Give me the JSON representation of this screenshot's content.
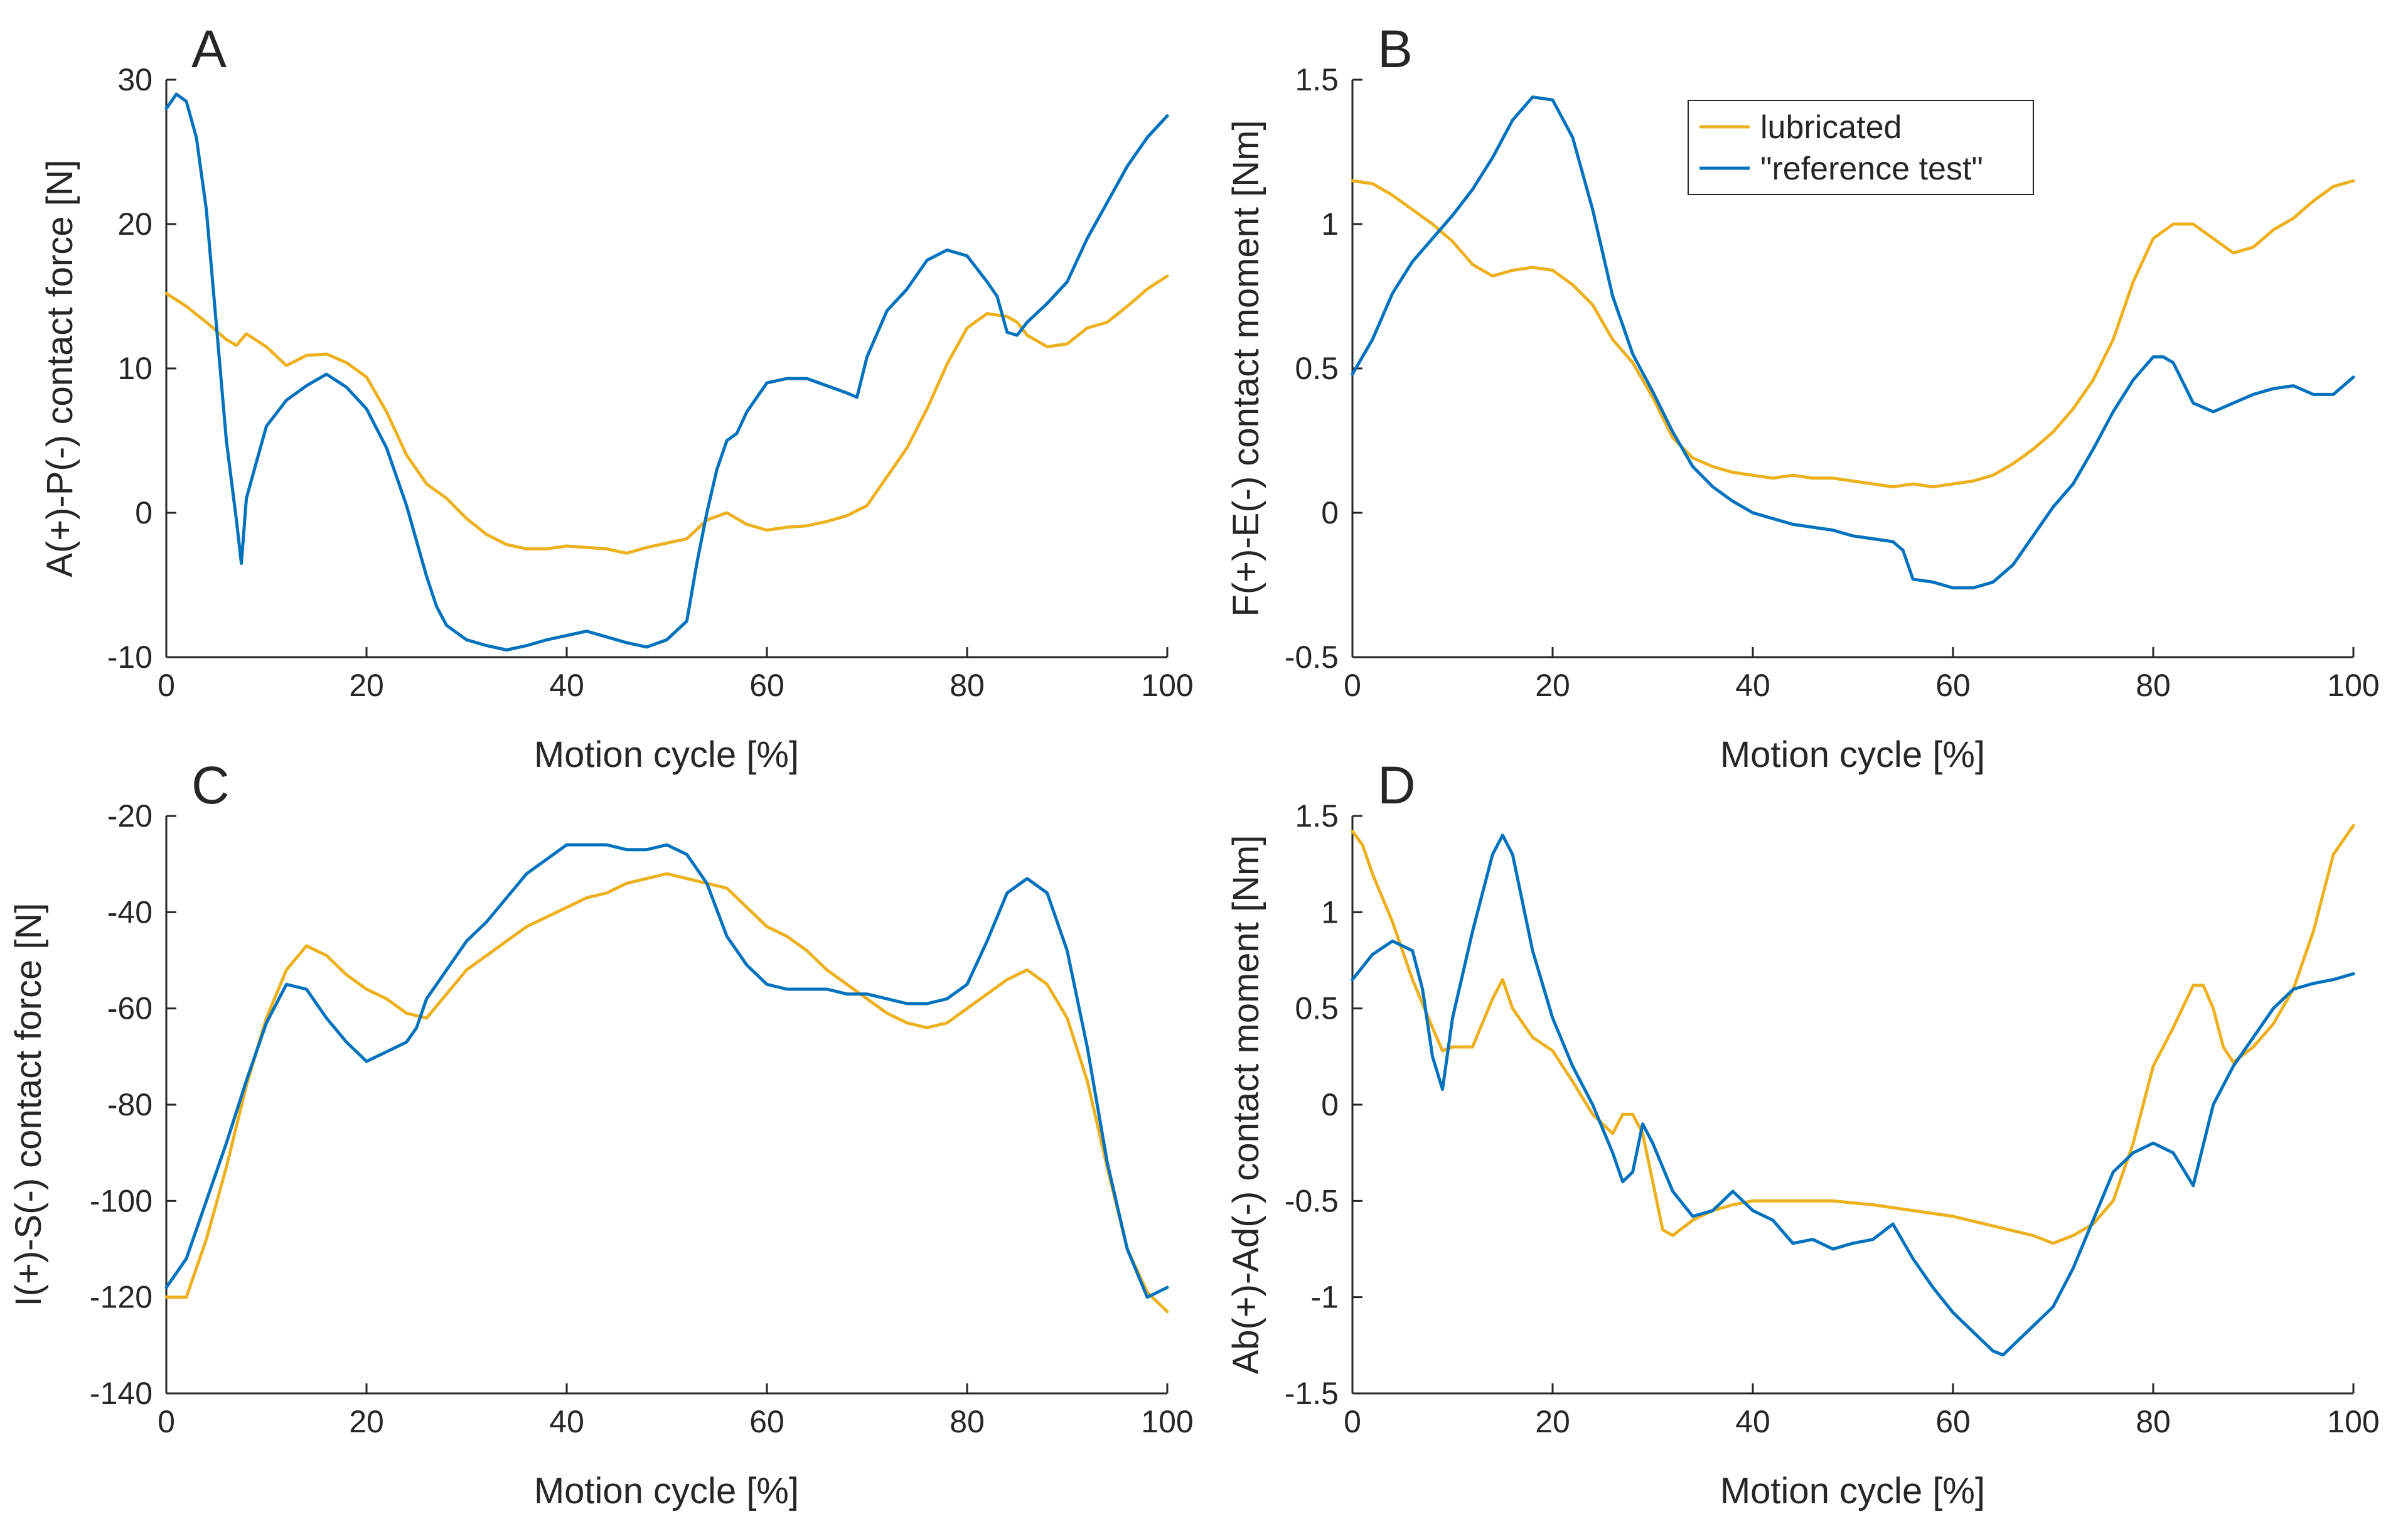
{
  "colors": {
    "lubricated": "#EDB120",
    "reference": "#0072BD",
    "axis": "#262626"
  },
  "legend": {
    "placement": "top-right of panel B",
    "entries": [
      {
        "series": "lubricated",
        "label": "lubricated"
      },
      {
        "series": "reference",
        "label": "\"reference test\""
      }
    ]
  },
  "chart_data": [
    {
      "type": "line",
      "panel_letter": "A",
      "xlabel": "Motion cycle [%]",
      "ylabel": "A(+)-P(-) contact force [N]",
      "xlim": [
        0,
        100
      ],
      "ylim": [
        -10,
        30
      ],
      "xticks": [
        0,
        20,
        40,
        60,
        80,
        100
      ],
      "yticks": [
        -10,
        0,
        10,
        20,
        30
      ],
      "grid": false,
      "series": [
        {
          "name": "lubricated",
          "color": "#EDB120",
          "x": [
            0,
            2,
            4,
            6,
            7,
            8,
            10,
            12,
            14,
            16,
            18,
            20,
            22,
            24,
            26,
            28,
            30,
            32,
            34,
            36,
            38,
            40,
            42,
            44,
            46,
            48,
            50,
            52,
            54,
            56,
            58,
            60,
            62,
            64,
            66,
            68,
            70,
            72,
            74,
            76,
            78,
            80,
            82,
            84,
            85,
            86,
            88,
            90,
            92,
            94,
            96,
            98,
            100
          ],
          "y": [
            15.2,
            14.3,
            13.2,
            12,
            11.6,
            12.4,
            11.5,
            10.2,
            10.9,
            11,
            10.4,
            9.4,
            7,
            4,
            2,
            1,
            -0.4,
            -1.5,
            -2.2,
            -2.5,
            -2.5,
            -2.3,
            -2.4,
            -2.5,
            -2.8,
            -2.4,
            -2.1,
            -1.8,
            -0.5,
            0,
            -0.8,
            -1.2,
            -1,
            -0.9,
            -0.6,
            -0.2,
            0.5,
            2.5,
            4.5,
            7.2,
            10.3,
            12.8,
            13.8,
            13.6,
            13.2,
            12.3,
            11.5,
            11.7,
            12.8,
            13.2,
            14.3,
            15.5,
            16.4
          ]
        },
        {
          "name": "\"reference test\"",
          "color": "#0072BD",
          "x": [
            0,
            1,
            2,
            3,
            4,
            5,
            6,
            7,
            7.5,
            8,
            9,
            10,
            12,
            14,
            16,
            18,
            20,
            22,
            24,
            26,
            27,
            28,
            30,
            32,
            34,
            36,
            38,
            40,
            42,
            44,
            46,
            48,
            50,
            52,
            53,
            54,
            55,
            56,
            57,
            58,
            60,
            62,
            64,
            66,
            68,
            69,
            70,
            72,
            74,
            76,
            78,
            80,
            82,
            83,
            84,
            85,
            86,
            88,
            90,
            92,
            94,
            96,
            98,
            100
          ],
          "y": [
            28,
            29,
            28.5,
            26,
            21,
            13,
            5,
            -0.5,
            -3.5,
            1,
            3.5,
            6,
            7.8,
            8.8,
            9.6,
            8.7,
            7.2,
            4.5,
            0.5,
            -4.4,
            -6.5,
            -7.8,
            -8.8,
            -9.2,
            -9.5,
            -9.2,
            -8.8,
            -8.5,
            -8.2,
            -8.6,
            -9,
            -9.3,
            -8.8,
            -7.5,
            -3.5,
            0,
            3,
            5,
            5.5,
            7,
            9,
            9.3,
            9.3,
            8.8,
            8.3,
            8,
            10.8,
            14,
            15.5,
            17.5,
            18.2,
            17.8,
            16,
            15,
            12.5,
            12.3,
            13.2,
            14.5,
            16,
            19,
            21.5,
            24,
            26,
            27.5
          ]
        }
      ]
    },
    {
      "type": "line",
      "panel_letter": "B",
      "xlabel": "Motion cycle [%]",
      "ylabel": "F(+)-E(-) contact moment [Nm]",
      "xlim": [
        0,
        100
      ],
      "ylim": [
        -0.5,
        1.5
      ],
      "xticks": [
        0,
        20,
        40,
        60,
        80,
        100
      ],
      "yticks": [
        -0.5,
        0,
        0.5,
        1,
        1.5
      ],
      "grid": false,
      "series": [
        {
          "name": "lubricated",
          "color": "#EDB120",
          "x": [
            0,
            2,
            4,
            6,
            8,
            10,
            12,
            14,
            16,
            18,
            20,
            22,
            24,
            26,
            28,
            30,
            32,
            34,
            36,
            38,
            40,
            42,
            44,
            46,
            48,
            50,
            52,
            54,
            56,
            58,
            60,
            62,
            64,
            66,
            68,
            70,
            72,
            74,
            76,
            78,
            80,
            82,
            84,
            86,
            88,
            90,
            92,
            94,
            96,
            98,
            100
          ],
          "y": [
            1.15,
            1.14,
            1.1,
            1.05,
            1.0,
            0.94,
            0.86,
            0.82,
            0.84,
            0.85,
            0.84,
            0.79,
            0.72,
            0.6,
            0.52,
            0.4,
            0.26,
            0.19,
            0.16,
            0.14,
            0.13,
            0.12,
            0.13,
            0.12,
            0.12,
            0.11,
            0.1,
            0.09,
            0.1,
            0.09,
            0.1,
            0.11,
            0.13,
            0.17,
            0.22,
            0.28,
            0.36,
            0.46,
            0.6,
            0.8,
            0.95,
            1.0,
            1.0,
            0.95,
            0.9,
            0.92,
            0.98,
            1.02,
            1.08,
            1.13,
            1.15
          ]
        },
        {
          "name": "\"reference test\"",
          "color": "#0072BD",
          "x": [
            0,
            2,
            4,
            6,
            8,
            10,
            12,
            14,
            16,
            18,
            20,
            22,
            24,
            25,
            26,
            27,
            28,
            30,
            32,
            34,
            36,
            38,
            40,
            42,
            44,
            46,
            48,
            50,
            52,
            54,
            55,
            56,
            58,
            60,
            62,
            64,
            66,
            68,
            70,
            72,
            74,
            76,
            78,
            80,
            81,
            82,
            84,
            86,
            88,
            90,
            92,
            94,
            96,
            98,
            100
          ],
          "y": [
            0.48,
            0.6,
            0.76,
            0.87,
            0.95,
            1.03,
            1.12,
            1.23,
            1.36,
            1.44,
            1.43,
            1.3,
            1.05,
            0.9,
            0.75,
            0.65,
            0.55,
            0.42,
            0.28,
            0.16,
            0.09,
            0.04,
            0.0,
            -0.02,
            -0.04,
            -0.05,
            -0.06,
            -0.08,
            -0.09,
            -0.1,
            -0.13,
            -0.23,
            -0.24,
            -0.26,
            -0.26,
            -0.24,
            -0.18,
            -0.08,
            0.02,
            0.1,
            0.22,
            0.35,
            0.46,
            0.54,
            0.54,
            0.52,
            0.38,
            0.35,
            0.38,
            0.41,
            0.43,
            0.44,
            0.41,
            0.41,
            0.47
          ]
        }
      ]
    },
    {
      "type": "line",
      "panel_letter": "C",
      "xlabel": "Motion cycle [%]",
      "ylabel": "I(+)-S(-) contact force [N]",
      "xlim": [
        0,
        100
      ],
      "ylim": [
        -140,
        -20
      ],
      "xticks": [
        0,
        20,
        40,
        60,
        80,
        100
      ],
      "yticks": [
        -140,
        -120,
        -100,
        -80,
        -60,
        -40,
        -20
      ],
      "grid": false,
      "series": [
        {
          "name": "lubricated",
          "color": "#EDB120",
          "x": [
            0,
            2,
            4,
            6,
            8,
            10,
            12,
            14,
            16,
            18,
            20,
            22,
            24,
            26,
            28,
            30,
            32,
            34,
            36,
            38,
            40,
            42,
            44,
            46,
            48,
            50,
            52,
            54,
            56,
            58,
            60,
            62,
            64,
            66,
            68,
            70,
            72,
            74,
            76,
            78,
            80,
            82,
            84,
            86,
            88,
            90,
            92,
            94,
            96,
            98,
            100
          ],
          "y": [
            -120,
            -120,
            -108,
            -93,
            -76,
            -62,
            -52,
            -47,
            -49,
            -53,
            -56,
            -58,
            -61,
            -62,
            -57,
            -52,
            -49,
            -46,
            -43,
            -41,
            -39,
            -37,
            -36,
            -34,
            -33,
            -32,
            -33,
            -34,
            -35,
            -39,
            -43,
            -45,
            -48,
            -52,
            -55,
            -58,
            -61,
            -63,
            -64,
            -63,
            -60,
            -57,
            -54,
            -52,
            -55,
            -62,
            -75,
            -93,
            -110,
            -119,
            -123
          ]
        },
        {
          "name": "\"reference test\"",
          "color": "#0072BD",
          "x": [
            0,
            2,
            4,
            6,
            8,
            10,
            12,
            14,
            16,
            18,
            20,
            22,
            24,
            25,
            26,
            27,
            28,
            30,
            32,
            34,
            36,
            38,
            40,
            42,
            44,
            46,
            48,
            50,
            52,
            54,
            56,
            58,
            60,
            62,
            64,
            66,
            68,
            70,
            72,
            74,
            76,
            78,
            80,
            82,
            84,
            86,
            88,
            90,
            92,
            94,
            96,
            98,
            100
          ],
          "y": [
            -118,
            -112,
            -100,
            -88,
            -75,
            -63,
            -55,
            -56,
            -62,
            -67,
            -71,
            -69,
            -67,
            -64,
            -58,
            -55,
            -52,
            -46,
            -42,
            -37,
            -32,
            -29,
            -26,
            -26,
            -26,
            -27,
            -27,
            -26,
            -28,
            -34,
            -45,
            -51,
            -55,
            -56,
            -56,
            -56,
            -57,
            -57,
            -58,
            -59,
            -59,
            -58,
            -55,
            -46,
            -36,
            -33,
            -36,
            -48,
            -68,
            -92,
            -110,
            -120,
            -118
          ]
        }
      ]
    },
    {
      "type": "line",
      "panel_letter": "D",
      "xlabel": "Motion cycle [%]",
      "ylabel": "Ab(+)-Ad(-) contact moment [Nm]",
      "xlim": [
        0,
        100
      ],
      "ylim": [
        -1.5,
        1.5
      ],
      "xticks": [
        0,
        20,
        40,
        60,
        80,
        100
      ],
      "yticks": [
        -1.5,
        -1,
        -0.5,
        0,
        0.5,
        1,
        1.5
      ],
      "grid": false,
      "series": [
        {
          "name": "lubricated",
          "color": "#EDB120",
          "x": [
            0,
            1,
            2,
            4,
            6,
            8,
            9,
            10,
            12,
            14,
            15,
            16,
            18,
            20,
            22,
            24,
            26,
            27,
            28,
            29,
            30,
            31,
            32,
            34,
            36,
            38,
            40,
            44,
            48,
            52,
            56,
            60,
            64,
            68,
            70,
            72,
            74,
            76,
            78,
            80,
            82,
            84,
            85,
            86,
            87,
            88,
            90,
            92,
            94,
            96,
            98,
            100
          ],
          "y": [
            1.42,
            1.35,
            1.2,
            0.95,
            0.65,
            0.4,
            0.28,
            0.3,
            0.3,
            0.55,
            0.65,
            0.5,
            0.35,
            0.28,
            0.12,
            -0.05,
            -0.15,
            -0.05,
            -0.05,
            -0.15,
            -0.4,
            -0.65,
            -0.68,
            -0.6,
            -0.55,
            -0.52,
            -0.5,
            -0.5,
            -0.5,
            -0.52,
            -0.55,
            -0.58,
            -0.63,
            -0.68,
            -0.72,
            -0.68,
            -0.62,
            -0.5,
            -0.2,
            0.2,
            0.4,
            0.62,
            0.62,
            0.5,
            0.3,
            0.22,
            0.3,
            0.42,
            0.6,
            0.9,
            1.3,
            1.45
          ]
        },
        {
          "name": "\"reference test\"",
          "color": "#0072BD",
          "x": [
            0,
            2,
            4,
            6,
            7,
            8,
            9,
            10,
            12,
            14,
            15,
            16,
            18,
            20,
            22,
            24,
            26,
            27,
            28,
            29,
            30,
            32,
            34,
            36,
            38,
            40,
            42,
            44,
            46,
            48,
            50,
            52,
            54,
            56,
            58,
            60,
            62,
            64,
            65,
            66,
            68,
            70,
            72,
            74,
            76,
            78,
            80,
            82,
            84,
            86,
            88,
            90,
            92,
            94,
            96,
            98,
            100
          ],
          "y": [
            0.65,
            0.78,
            0.85,
            0.8,
            0.6,
            0.25,
            0.08,
            0.45,
            0.9,
            1.3,
            1.4,
            1.3,
            0.8,
            0.45,
            0.2,
            0.0,
            -0.25,
            -0.4,
            -0.35,
            -0.1,
            -0.2,
            -0.45,
            -0.58,
            -0.55,
            -0.45,
            -0.55,
            -0.6,
            -0.72,
            -0.7,
            -0.75,
            -0.72,
            -0.7,
            -0.62,
            -0.8,
            -0.95,
            -1.08,
            -1.18,
            -1.28,
            -1.3,
            -1.25,
            -1.15,
            -1.05,
            -0.85,
            -0.6,
            -0.35,
            -0.25,
            -0.2,
            -0.25,
            -0.42,
            0.0,
            0.2,
            0.35,
            0.5,
            0.6,
            0.63,
            0.65,
            0.68
          ]
        }
      ]
    }
  ]
}
